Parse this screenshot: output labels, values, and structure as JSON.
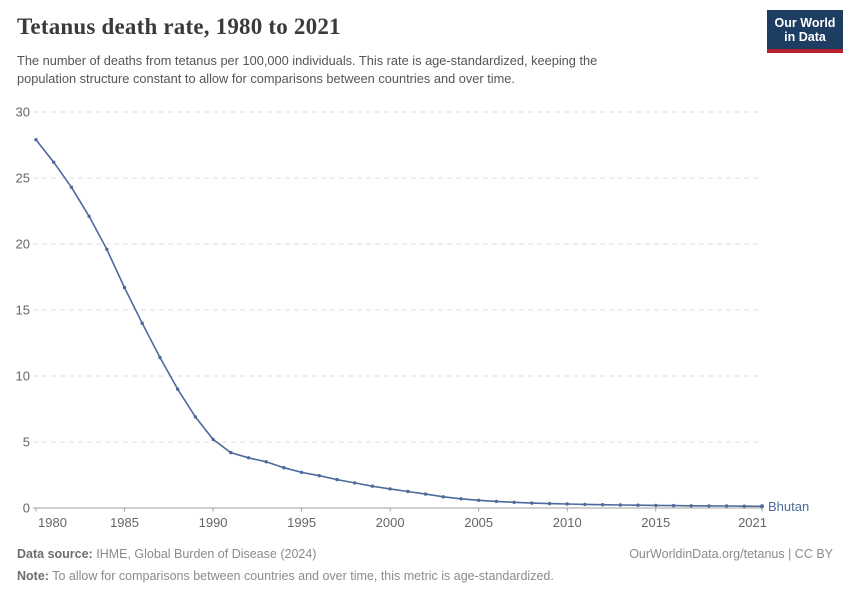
{
  "header": {
    "title": "Tetanus death rate, 1980 to 2021",
    "subtitle_lines": [
      "The number of deaths from tetanus per 100,000 individuals. This rate is age-standardized, keeping the",
      "population structure constant to allow for comparisons between countries and over time."
    ],
    "logo": {
      "line1": "Our World",
      "line2": "in Data",
      "bg_color": "#1d3d63",
      "accent_color": "#b5232d"
    }
  },
  "chart_data": {
    "type": "line",
    "title": "Tetanus death rate, 1980 to 2021",
    "xlabel": "",
    "ylabel": "",
    "grid": "horizontal-dashed",
    "legend_position": "end-of-line-label",
    "xlim": [
      1980,
      2021
    ],
    "ylim": [
      0,
      30
    ],
    "x_ticks": [
      1980,
      1985,
      1990,
      1995,
      2000,
      2005,
      2010,
      2015,
      2021
    ],
    "y_ticks": [
      0,
      5,
      10,
      15,
      20,
      25,
      30
    ],
    "x": [
      1980,
      1981,
      1982,
      1983,
      1984,
      1985,
      1986,
      1987,
      1988,
      1989,
      1990,
      1991,
      1992,
      1993,
      1994,
      1995,
      1996,
      1997,
      1998,
      1999,
      2000,
      2001,
      2002,
      2003,
      2004,
      2005,
      2006,
      2007,
      2008,
      2009,
      2010,
      2011,
      2012,
      2013,
      2014,
      2015,
      2016,
      2017,
      2018,
      2019,
      2020,
      2021
    ],
    "series": [
      {
        "name": "Bhutan",
        "values": [
          27.9,
          26.2,
          24.3,
          22.1,
          19.6,
          16.7,
          14.0,
          11.4,
          9.0,
          6.9,
          5.2,
          4.2,
          3.8,
          3.5,
          3.05,
          2.7,
          2.45,
          2.15,
          1.9,
          1.65,
          1.45,
          1.25,
          1.05,
          0.85,
          0.7,
          0.58,
          0.5,
          0.43,
          0.37,
          0.33,
          0.3,
          0.27,
          0.25,
          0.23,
          0.21,
          0.2,
          0.18,
          0.17,
          0.16,
          0.15,
          0.14,
          0.13
        ]
      }
    ],
    "colors": {
      "line": "#4C6A9C",
      "entity_label": "#4C6A9C",
      "grid": "#dddddd",
      "axis": "#a1a1a1",
      "tick_label": "#666666"
    },
    "entity_label": "Bhutan"
  },
  "footer": {
    "source_label": "Data source:",
    "source_text": "IHME, Global Burden of Disease (2024)",
    "link_text": "OurWorldinData.org/tetanus | CC BY",
    "note_label": "Note:",
    "note_text": "To allow for comparisons between countries and over time, this metric is age-standardized."
  }
}
